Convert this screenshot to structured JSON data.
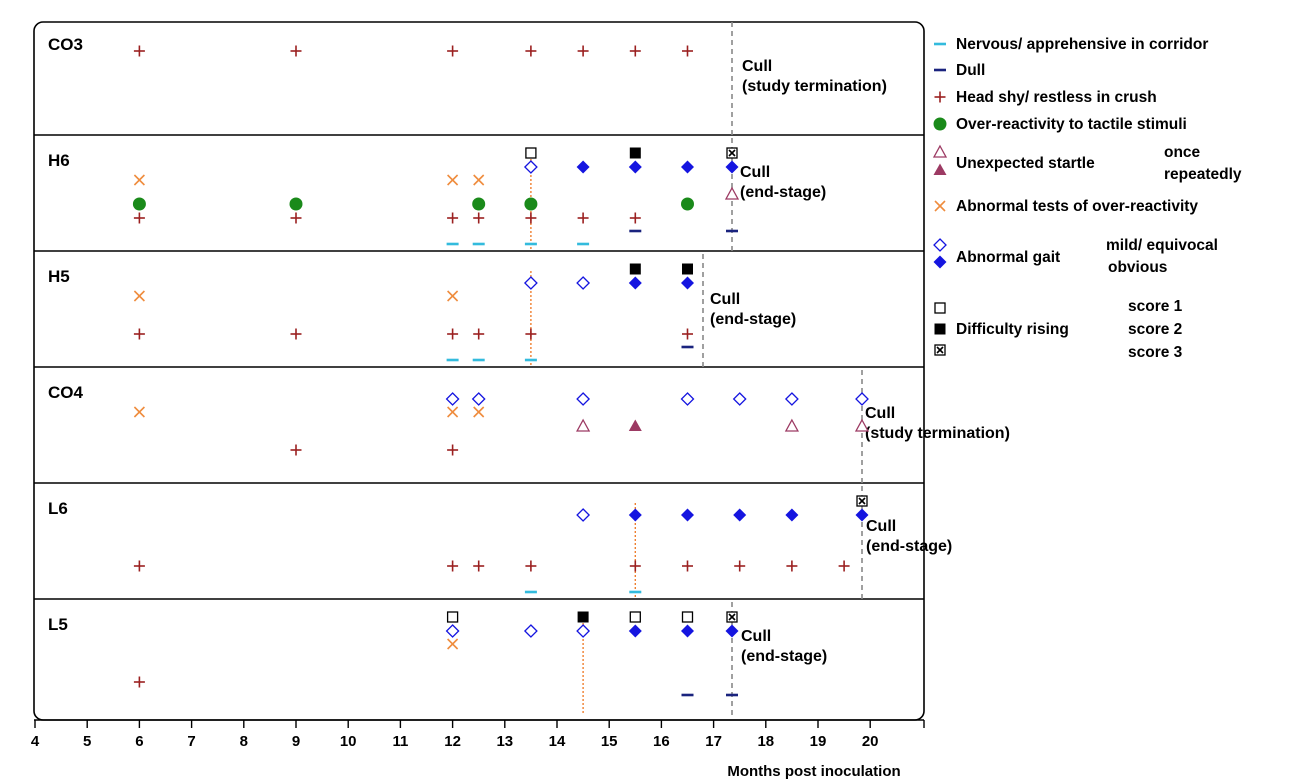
{
  "chart_data": {
    "type": "scatter",
    "title": "",
    "xlabel": "Months post inoculation",
    "ylabel": "",
    "xlim": [
      4,
      21
    ],
    "xticks": [
      4,
      5,
      6,
      7,
      8,
      9,
      10,
      11,
      12,
      13,
      14,
      15,
      16,
      17,
      18,
      19,
      20
    ],
    "grid": false,
    "legend_position": "right",
    "rows": [
      {
        "label": "CO3",
        "cull_text": [
          "Cull",
          "(study termination)"
        ],
        "cull_line": {
          "x": 17,
          "style": "gray-dashed"
        },
        "onset_line": null,
        "points": [
          {
            "x": 6,
            "symbol": "head_shy",
            "level": 1
          },
          {
            "x": 9,
            "symbol": "head_shy",
            "level": 1
          },
          {
            "x": 12,
            "symbol": "head_shy",
            "level": 1
          },
          {
            "x": 13.5,
            "symbol": "head_shy",
            "level": 1
          },
          {
            "x": 14.5,
            "symbol": "head_shy",
            "level": 1
          },
          {
            "x": 15.5,
            "symbol": "head_shy",
            "level": 1
          },
          {
            "x": 16.5,
            "symbol": "head_shy",
            "level": 1
          }
        ]
      },
      {
        "label": "H6",
        "cull_text": [
          "Cull",
          "(end-stage)"
        ],
        "cull_line": {
          "x": 17,
          "style": "gray-dashed"
        },
        "onset_line": {
          "x": 13.5
        },
        "points": [
          {
            "x": 13.5,
            "symbol": "rising_1",
            "level": 0
          },
          {
            "x": 15.5,
            "symbol": "rising_2",
            "level": 0
          },
          {
            "x": 17,
            "symbol": "rising_3",
            "level": 0
          },
          {
            "x": 13.5,
            "symbol": "gait_mild",
            "level": 1
          },
          {
            "x": 14.5,
            "symbol": "gait_obvious",
            "level": 1
          },
          {
            "x": 15.5,
            "symbol": "gait_obvious",
            "level": 1
          },
          {
            "x": 16.5,
            "symbol": "gait_obvious",
            "level": 1
          },
          {
            "x": 17,
            "symbol": "gait_obvious",
            "level": 1
          },
          {
            "x": 6,
            "symbol": "abnormal_tests",
            "level": 2
          },
          {
            "x": 12,
            "symbol": "abnormal_tests",
            "level": 2
          },
          {
            "x": 12.5,
            "symbol": "abnormal_tests",
            "level": 2
          },
          {
            "x": 17,
            "symbol": "startle_once",
            "level": 3
          },
          {
            "x": 6,
            "symbol": "over_reactivity",
            "level": 4
          },
          {
            "x": 9,
            "symbol": "over_reactivity",
            "level": 4
          },
          {
            "x": 12.5,
            "symbol": "over_reactivity",
            "level": 4
          },
          {
            "x": 13.5,
            "symbol": "over_reactivity",
            "level": 4
          },
          {
            "x": 16.5,
            "symbol": "over_reactivity",
            "level": 4
          },
          {
            "x": 6,
            "symbol": "head_shy",
            "level": 5
          },
          {
            "x": 9,
            "symbol": "head_shy",
            "level": 5
          },
          {
            "x": 12,
            "symbol": "head_shy",
            "level": 5
          },
          {
            "x": 12.5,
            "symbol": "head_shy",
            "level": 5
          },
          {
            "x": 13.5,
            "symbol": "head_shy",
            "level": 5
          },
          {
            "x": 14.5,
            "symbol": "head_shy",
            "level": 5
          },
          {
            "x": 15.5,
            "symbol": "head_shy",
            "level": 5
          },
          {
            "x": 15.5,
            "symbol": "dull",
            "level": 6
          },
          {
            "x": 17,
            "symbol": "dull",
            "level": 6
          },
          {
            "x": 12,
            "symbol": "nervous",
            "level": 7
          },
          {
            "x": 12.5,
            "symbol": "nervous",
            "level": 7
          },
          {
            "x": 13.5,
            "symbol": "nervous",
            "level": 7
          },
          {
            "x": 14.5,
            "symbol": "nervous",
            "level": 7
          }
        ]
      },
      {
        "label": "H5",
        "cull_text": [
          "Cull",
          "(end-stage)"
        ],
        "cull_line": {
          "x": 16.5,
          "style": "gray-dashed"
        },
        "onset_line": {
          "x": 13.5
        },
        "points": [
          {
            "x": 15.5,
            "symbol": "rising_2",
            "level": 0
          },
          {
            "x": 16.5,
            "symbol": "rising_2",
            "level": 0
          },
          {
            "x": 13.5,
            "symbol": "gait_mild",
            "level": 1
          },
          {
            "x": 14.5,
            "symbol": "gait_mild",
            "level": 1
          },
          {
            "x": 15.5,
            "symbol": "gait_obvious",
            "level": 1
          },
          {
            "x": 16.5,
            "symbol": "gait_obvious",
            "level": 1
          },
          {
            "x": 6,
            "symbol": "abnormal_tests",
            "level": 2
          },
          {
            "x": 12,
            "symbol": "abnormal_tests",
            "level": 2
          },
          {
            "x": 6,
            "symbol": "head_shy",
            "level": 5
          },
          {
            "x": 9,
            "symbol": "head_shy",
            "level": 5
          },
          {
            "x": 12,
            "symbol": "head_shy",
            "level": 5
          },
          {
            "x": 12.5,
            "symbol": "head_shy",
            "level": 5
          },
          {
            "x": 13.5,
            "symbol": "head_shy",
            "level": 5
          },
          {
            "x": 16.5,
            "symbol": "head_shy",
            "level": 5
          },
          {
            "x": 16.5,
            "symbol": "dull",
            "level": 6
          },
          {
            "x": 12,
            "symbol": "nervous",
            "level": 7
          },
          {
            "x": 12.5,
            "symbol": "nervous",
            "level": 7
          },
          {
            "x": 13.5,
            "symbol": "nervous",
            "level": 7
          }
        ]
      },
      {
        "label": "CO4",
        "cull_text": [
          "Cull",
          "(study termination)"
        ],
        "cull_line": {
          "x": 19.5,
          "style": "gray-dashed"
        },
        "onset_line": null,
        "points": [
          {
            "x": 12,
            "symbol": "gait_mild",
            "level": 1
          },
          {
            "x": 12.5,
            "symbol": "gait_mild",
            "level": 1
          },
          {
            "x": 14.5,
            "symbol": "gait_mild",
            "level": 1
          },
          {
            "x": 16.5,
            "symbol": "gait_mild",
            "level": 1
          },
          {
            "x": 17.5,
            "symbol": "gait_mild",
            "level": 1
          },
          {
            "x": 18.5,
            "symbol": "gait_mild",
            "level": 1
          },
          {
            "x": 19.5,
            "symbol": "gait_mild",
            "level": 1
          },
          {
            "x": 6,
            "symbol": "abnormal_tests",
            "level": 2
          },
          {
            "x": 12,
            "symbol": "abnormal_tests",
            "level": 2
          },
          {
            "x": 12.5,
            "symbol": "abnormal_tests",
            "level": 2
          },
          {
            "x": 14.5,
            "symbol": "startle_once",
            "level": 3
          },
          {
            "x": 15.5,
            "symbol": "startle_repeated",
            "level": 3
          },
          {
            "x": 18.5,
            "symbol": "startle_once",
            "level": 3
          },
          {
            "x": 19.5,
            "symbol": "startle_once",
            "level": 3
          },
          {
            "x": 9,
            "symbol": "head_shy",
            "level": 5
          },
          {
            "x": 12,
            "symbol": "head_shy",
            "level": 5
          }
        ]
      },
      {
        "label": "L6",
        "cull_text": [
          "Cull",
          "(end-stage)"
        ],
        "cull_line": {
          "x": 19.5,
          "style": "gray-dashed"
        },
        "onset_line": {
          "x": 15.5
        },
        "points": [
          {
            "x": 19.5,
            "symbol": "rising_3",
            "level": 0
          },
          {
            "x": 14.5,
            "symbol": "gait_mild",
            "level": 1
          },
          {
            "x": 15.5,
            "symbol": "gait_obvious",
            "level": 1
          },
          {
            "x": 16.5,
            "symbol": "gait_obvious",
            "level": 1
          },
          {
            "x": 17.5,
            "symbol": "gait_obvious",
            "level": 1
          },
          {
            "x": 18.5,
            "symbol": "gait_obvious",
            "level": 1
          },
          {
            "x": 19.5,
            "symbol": "gait_obvious",
            "level": 1
          },
          {
            "x": 6,
            "symbol": "head_shy",
            "level": 5
          },
          {
            "x": 12,
            "symbol": "head_shy",
            "level": 5
          },
          {
            "x": 12.5,
            "symbol": "head_shy",
            "level": 5
          },
          {
            "x": 13.5,
            "symbol": "head_shy",
            "level": 5
          },
          {
            "x": 15.5,
            "symbol": "head_shy",
            "level": 5
          },
          {
            "x": 16.5,
            "symbol": "head_shy",
            "level": 5
          },
          {
            "x": 17.5,
            "symbol": "head_shy",
            "level": 5
          },
          {
            "x": 18.5,
            "symbol": "head_shy",
            "level": 5
          },
          {
            "x": 19.5,
            "symbol": "head_shy",
            "level": 5
          },
          {
            "x": 13.5,
            "symbol": "nervous",
            "level": 7
          },
          {
            "x": 15.5,
            "symbol": "nervous",
            "level": 7
          }
        ]
      },
      {
        "label": "L5",
        "cull_text": [
          "Cull",
          "(end-stage)"
        ],
        "cull_line": {
          "x": 17,
          "style": "gray-dashed"
        },
        "onset_line": {
          "x": 14.5
        },
        "points": [
          {
            "x": 12,
            "symbol": "rising_1",
            "level": 0
          },
          {
            "x": 14.5,
            "symbol": "rising_2",
            "level": 0
          },
          {
            "x": 15.5,
            "symbol": "rising_1",
            "level": 0
          },
          {
            "x": 16.5,
            "symbol": "rising_1",
            "level": 0
          },
          {
            "x": 17,
            "symbol": "rising_3",
            "level": 0
          },
          {
            "x": 12,
            "symbol": "gait_mild",
            "level": 1
          },
          {
            "x": 13.5,
            "symbol": "gait_mild",
            "level": 1
          },
          {
            "x": 14.5,
            "symbol": "gait_mild",
            "level": 1
          },
          {
            "x": 15.5,
            "symbol": "gait_obvious",
            "level": 1
          },
          {
            "x": 16.5,
            "symbol": "gait_obvious",
            "level": 1
          },
          {
            "x": 17,
            "symbol": "gait_obvious",
            "level": 1
          },
          {
            "x": 12,
            "symbol": "abnormal_tests",
            "level": 2
          },
          {
            "x": 6,
            "symbol": "head_shy",
            "level": 5
          },
          {
            "x": 16.5,
            "symbol": "dull",
            "level": 6
          },
          {
            "x": 17,
            "symbol": "dull",
            "level": 6
          }
        ]
      }
    ],
    "legend": [
      {
        "symbol": "nervous",
        "label": "Nervous/ apprehensive in corridor"
      },
      {
        "symbol": "dull",
        "label": "Dull"
      },
      {
        "symbol": "head_shy",
        "label": "Head shy/ restless in crush"
      },
      {
        "symbol": "over_reactivity",
        "label": "Over-reactivity to tactile stimuli"
      },
      {
        "group": "Unexpected startle",
        "symbols": [
          "startle_once",
          "startle_repeated"
        ],
        "sublabels": [
          "once",
          "repeatedly"
        ]
      },
      {
        "symbol": "abnormal_tests",
        "label": "Abnormal tests of over-reactivity"
      },
      {
        "group": "Abnormal gait",
        "symbols": [
          "gait_mild",
          "gait_obvious"
        ],
        "sublabels": [
          "mild/ equivocal",
          "obvious"
        ]
      },
      {
        "group": "Difficulty rising",
        "symbols": [
          "rising_1",
          "rising_2",
          "rising_3"
        ],
        "sublabels": [
          "score 1",
          "score 2",
          "score 3"
        ]
      }
    ],
    "colors": {
      "nervous": "#33bbdd",
      "dull": "#1a237e",
      "head_shy": "#9b2020",
      "over_reactivity": "#1a8a1a",
      "startle": "#9c3a63",
      "abnormal_tests": "#ef8c3d",
      "gait": "#1515e0",
      "rising": "#000000",
      "onset_line": "#ef7f2f",
      "cull_line": "#888888"
    }
  }
}
